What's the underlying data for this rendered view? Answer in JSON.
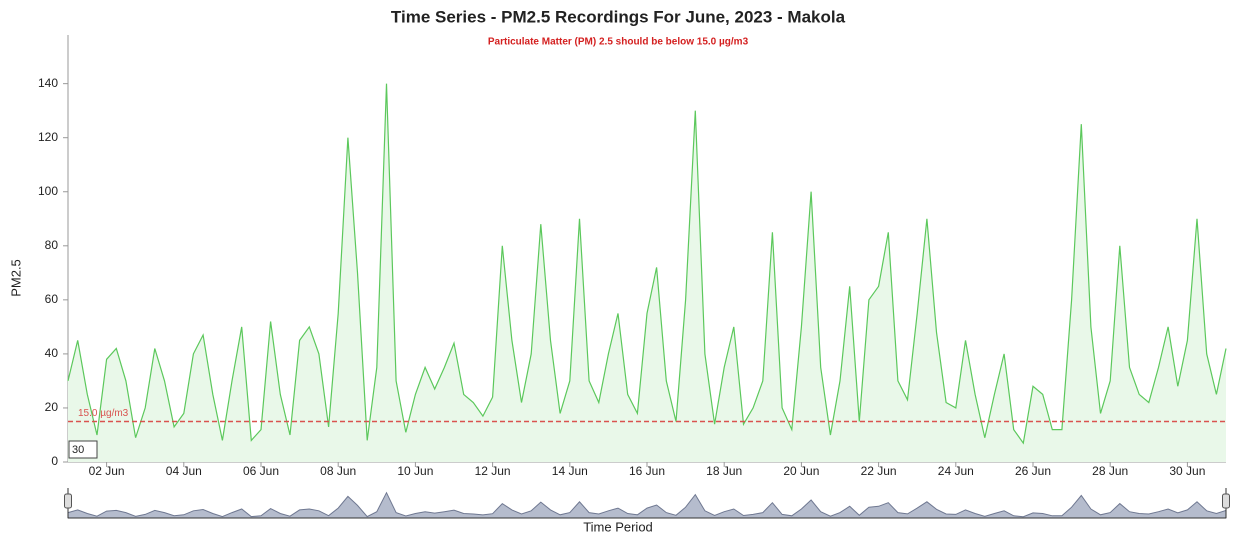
{
  "chart_data": {
    "type": "line",
    "title": "Time Series - PM2.5 Recordings For June, 2023 - Makola",
    "subtitle": "Particulate Matter (PM) 2.5 should be below 15.0 µg/m3",
    "y_label": "PM2.5",
    "x_label": "Time Period",
    "threshold": {
      "value": 15,
      "label": "15.0 µg/m3",
      "color": "#d9534f"
    },
    "roll_period": 30,
    "color": "#5cc85c",
    "fill": "#e9f8e9",
    "xlim": [
      1,
      31
    ],
    "ylim": [
      0,
      158
    ],
    "yticks": [
      0,
      20,
      40,
      60,
      80,
      100,
      120,
      140
    ],
    "xticks": [
      {
        "value": 2,
        "label": "02 Jun"
      },
      {
        "value": 4,
        "label": "04 Jun"
      },
      {
        "value": 6,
        "label": "06 Jun"
      },
      {
        "value": 8,
        "label": "08 Jun"
      },
      {
        "value": 10,
        "label": "10 Jun"
      },
      {
        "value": 12,
        "label": "12 Jun"
      },
      {
        "value": 14,
        "label": "14 Jun"
      },
      {
        "value": 16,
        "label": "16 Jun"
      },
      {
        "value": 18,
        "label": "18 Jun"
      },
      {
        "value": 20,
        "label": "20 Jun"
      },
      {
        "value": 22,
        "label": "22 Jun"
      },
      {
        "value": 24,
        "label": "24 Jun"
      },
      {
        "value": 26,
        "label": "26 Jun"
      },
      {
        "value": 28,
        "label": "28 Jun"
      },
      {
        "value": 30,
        "label": "30 Jun"
      }
    ],
    "x": [
      1,
      1.25,
      1.5,
      1.75,
      2,
      2.25,
      2.5,
      2.75,
      3,
      3.25,
      3.5,
      3.75,
      4,
      4.25,
      4.5,
      4.75,
      5,
      5.25,
      5.5,
      5.75,
      6,
      6.25,
      6.5,
      6.75,
      7,
      7.25,
      7.5,
      7.75,
      8,
      8.25,
      8.5,
      8.75,
      9,
      9.25,
      9.5,
      9.75,
      10,
      10.25,
      10.5,
      10.75,
      11,
      11.25,
      11.5,
      11.75,
      12,
      12.25,
      12.5,
      12.75,
      13,
      13.25,
      13.5,
      13.75,
      14,
      14.25,
      14.5,
      14.75,
      15,
      15.25,
      15.5,
      15.75,
      16,
      16.25,
      16.5,
      16.75,
      17,
      17.25,
      17.5,
      17.75,
      18,
      18.25,
      18.5,
      18.75,
      19,
      19.25,
      19.5,
      19.75,
      20,
      20.25,
      20.5,
      20.75,
      21,
      21.25,
      21.5,
      21.75,
      22,
      22.25,
      22.5,
      22.75,
      23,
      23.25,
      23.5,
      23.75,
      24,
      24.25,
      24.5,
      24.75,
      25,
      25.25,
      25.5,
      25.75,
      26,
      26.25,
      26.5,
      26.75,
      27,
      27.25,
      27.5,
      27.75,
      28,
      28.25,
      28.5,
      28.75,
      29,
      29.25,
      29.5,
      29.75,
      30,
      30.25,
      30.5,
      30.75,
      31
    ],
    "values": [
      30,
      45,
      25,
      10,
      38,
      42,
      30,
      9,
      20,
      42,
      30,
      13,
      18,
      40,
      47,
      25,
      8,
      30,
      50,
      8,
      12,
      52,
      25,
      10,
      45,
      50,
      40,
      13,
      55,
      120,
      70,
      8,
      35,
      140,
      30,
      11,
      25,
      35,
      27,
      35,
      44,
      25,
      22,
      17,
      24,
      80,
      45,
      22,
      40,
      88,
      45,
      18,
      30,
      90,
      30,
      22,
      40,
      55,
      25,
      18,
      55,
      72,
      30,
      15,
      60,
      130,
      40,
      14,
      35,
      50,
      14,
      20,
      30,
      85,
      20,
      12,
      50,
      100,
      35,
      10,
      30,
      65,
      15,
      60,
      65,
      85,
      30,
      23,
      55,
      90,
      48,
      22,
      20,
      45,
      25,
      9,
      25,
      40,
      12,
      7,
      28,
      25,
      12,
      12,
      60,
      125,
      50,
      18,
      30,
      80,
      35,
      25,
      22,
      35,
      50,
      28,
      45,
      90,
      40,
      25,
      42
    ]
  }
}
